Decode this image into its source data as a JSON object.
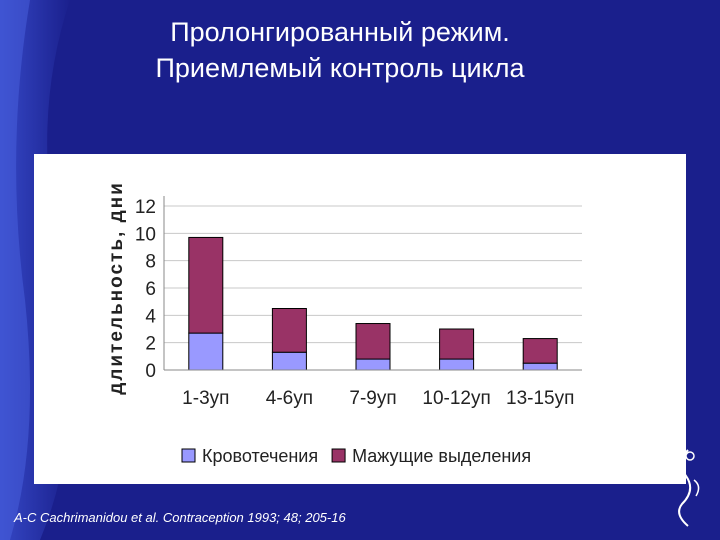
{
  "slide": {
    "title_line1": "Пролонгированный режим.",
    "title_line2": "Приемлемый контроль цикла",
    "citation": "A-C Cachrimanidou et al. Contraception 1993; 48; 205-16"
  },
  "colors": {
    "background": "#1a1f8c",
    "series1": "#9999ff",
    "series2": "#993366"
  },
  "chart_data": {
    "type": "bar",
    "stacked": true,
    "categories": [
      "1-3уп",
      "4-6уп",
      "7-9уп",
      "10-12уп",
      "13-15уп"
    ],
    "series": [
      {
        "name": "Кровотечения",
        "values": [
          2.7,
          1.3,
          0.8,
          0.8,
          0.5
        ]
      },
      {
        "name": "Мажущие выделения",
        "values": [
          7.0,
          3.2,
          2.6,
          2.2,
          1.8
        ]
      }
    ],
    "yticks": [
      "0",
      "2",
      "4",
      "6",
      "8",
      "10",
      "12"
    ],
    "ylim": [
      0,
      12
    ],
    "ylabel": "длительность, дни",
    "xlabel": "",
    "grid": true,
    "legend_position": "bottom"
  }
}
